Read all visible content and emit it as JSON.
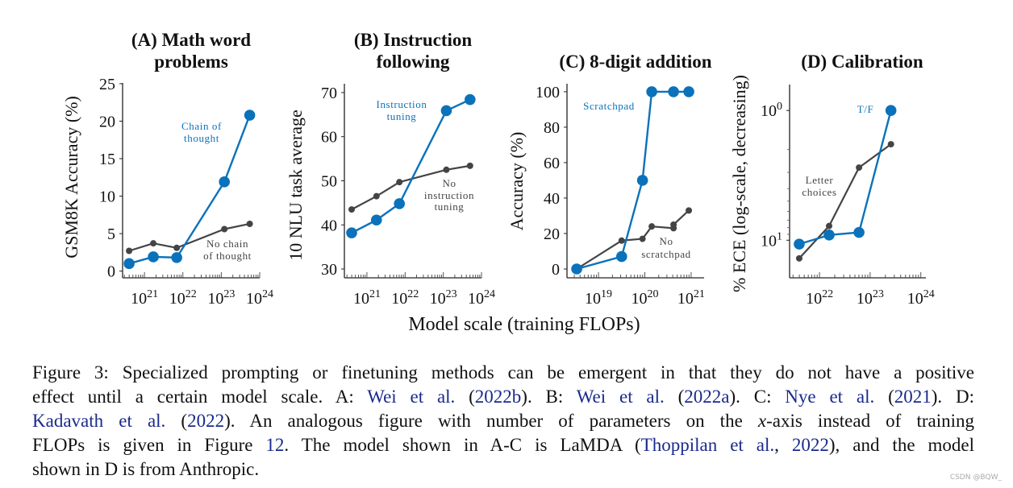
{
  "colors": {
    "blue": "#0a72ba",
    "gray": "#444444",
    "link": "#1a2a8c"
  },
  "shared_xlabel": "Model scale (training FLOPs)",
  "chart_data": [
    {
      "type": "line",
      "title": [
        "(A) Math word",
        "problems"
      ],
      "ylabel": "GSM8K Accuracy (%)",
      "xscale": "log",
      "x_units": "log10 training FLOPs",
      "xlim": [
        20.43,
        24
      ],
      "ylim": [
        -0.9,
        25.1
      ],
      "yticks": [
        0,
        5,
        10,
        15,
        20,
        25
      ],
      "xticks": [
        21,
        22,
        23,
        24
      ],
      "series": [
        {
          "name": "No chain of thought",
          "label": [
            "No chain",
            "of thought"
          ],
          "color": "gray",
          "x": [
            20.6,
            21.23,
            21.84,
            23.08,
            23.74
          ],
          "y": [
            2.7,
            3.7,
            3.1,
            5.6,
            6.3
          ]
        },
        {
          "name": "Chain of thought",
          "label": [
            "Chain of",
            "thought"
          ],
          "color": "blue",
          "x": [
            20.6,
            21.23,
            21.84,
            23.08,
            23.74
          ],
          "y": [
            1.0,
            1.9,
            1.8,
            11.9,
            20.8
          ]
        }
      ]
    },
    {
      "type": "line",
      "title": [
        "(B) Instruction",
        "following"
      ],
      "ylabel": "10 NLU task average",
      "xscale": "log",
      "x_units": "log10 training FLOPs",
      "xlim": [
        20.41,
        24
      ],
      "ylim": [
        28,
        72
      ],
      "yticks": [
        30,
        40,
        50,
        60,
        70
      ],
      "xticks": [
        21,
        22,
        23,
        24
      ],
      "series": [
        {
          "name": "No instruction tuning",
          "label": [
            "No",
            "instruction",
            "tuning"
          ],
          "color": "gray",
          "x": [
            20.6,
            21.25,
            21.85,
            23.08,
            23.7
          ],
          "y": [
            43.5,
            46.5,
            49.7,
            52.5,
            53.4
          ]
        },
        {
          "name": "Instruction tuning",
          "label": [
            "Instruction",
            "tuning"
          ],
          "color": "blue",
          "x": [
            20.6,
            21.25,
            21.85,
            23.08,
            23.7
          ],
          "y": [
            38.2,
            41.1,
            44.8,
            65.9,
            68.4
          ]
        }
      ]
    },
    {
      "type": "line",
      "title": [
        "(C) 8-digit addition"
      ],
      "ylabel": "Accuracy (%)",
      "xscale": "log",
      "x_units": "log10 training FLOPs",
      "xlim": [
        18.32,
        21.28
      ],
      "ylim": [
        -5,
        104.5
      ],
      "yticks": [
        0,
        20,
        40,
        60,
        80,
        100
      ],
      "xticks": [
        19,
        20,
        21
      ],
      "series": [
        {
          "name": "No scratchpad",
          "label": [
            "No",
            "scratchpad"
          ],
          "color": "gray",
          "x": [
            18.53,
            19.5,
            19.95,
            20.15,
            20.62,
            20.62,
            20.95
          ],
          "y": [
            0,
            16,
            17,
            24,
            23,
            25,
            33
          ]
        },
        {
          "name": "Scratchpad",
          "label": [
            "Scratchpad"
          ],
          "color": "blue",
          "x": [
            18.53,
            19.5,
            19.95,
            20.15,
            20.62,
            20.95
          ],
          "y": [
            0,
            7,
            50,
            100,
            100,
            100
          ]
        }
      ]
    },
    {
      "type": "line",
      "title": [
        "(D) Calibration"
      ],
      "ylabel": "% ECE (log-scale, decreasing)",
      "xscale": "log",
      "x_units": "log10 training FLOPs",
      "yscale": "log",
      "y_direction": "reversed",
      "y_units": "log10 % ECE",
      "xlim": [
        21.41,
        24.1
      ],
      "ylim": [
        -0.2,
        1.29
      ],
      "yticks": [
        0,
        1
      ],
      "xticks": [
        22,
        23,
        24
      ],
      "series": [
        {
          "name": "Letter choices",
          "label": [
            "Letter",
            "choices"
          ],
          "color": "gray",
          "x": [
            21.6,
            22.19,
            22.78,
            23.41
          ],
          "y": [
            1.14,
            0.89,
            0.44,
            0.26
          ]
        },
        {
          "name": "T/F",
          "label": [
            "T/F"
          ],
          "color": "blue",
          "x": [
            21.6,
            22.19,
            22.78,
            23.41
          ],
          "y": [
            1.03,
            0.96,
            0.94,
            0.0
          ]
        }
      ]
    }
  ],
  "caption": {
    "lines": [
      [
        {
          "t": "Figure 3: Specialized prompting or finetuning methods can be emergent in that they do not have a positive"
        }
      ],
      [
        {
          "t": "effect until a certain model scale.  A: "
        },
        {
          "t": "Wei et al.",
          "link": true
        },
        {
          "t": " ("
        },
        {
          "t": "2022b",
          "link": true
        },
        {
          "t": ").  B: "
        },
        {
          "t": "Wei et al.",
          "link": true
        },
        {
          "t": " ("
        },
        {
          "t": "2022a",
          "link": true
        },
        {
          "t": ").  C: "
        },
        {
          "t": "Nye et al.",
          "link": true
        },
        {
          "t": " ("
        },
        {
          "t": "2021",
          "link": true
        },
        {
          "t": ").  D:"
        }
      ],
      [
        {
          "t": "Kadavath et al.",
          "link": true
        },
        {
          "t": " ("
        },
        {
          "t": "2022",
          "link": true
        },
        {
          "t": ").  An analogous figure with number of parameters on the "
        },
        {
          "t": "x",
          "italic": true
        },
        {
          "t": "-axis instead of training"
        }
      ],
      [
        {
          "t": "FLOPs is given in Figure "
        },
        {
          "t": "12",
          "link": true
        },
        {
          "t": ".  The model shown in A-C is LaMDA ("
        },
        {
          "t": "Thoppilan et al.",
          "link": true
        },
        {
          "t": ", "
        },
        {
          "t": "2022",
          "link": true
        },
        {
          "t": "), and the model"
        }
      ],
      [
        {
          "t": "shown in D is from Anthropic."
        }
      ]
    ]
  },
  "watermark": "CSDN @BQW_"
}
